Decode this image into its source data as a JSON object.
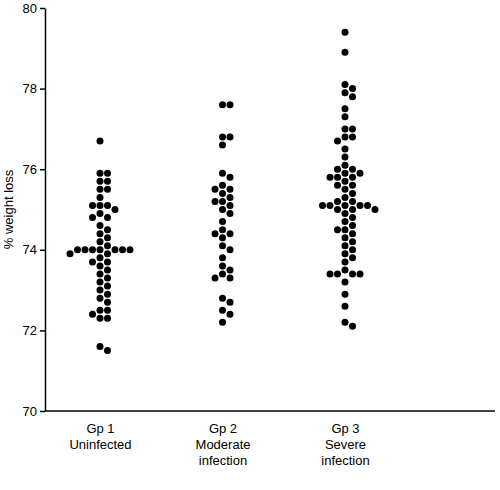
{
  "chart_data": {
    "type": "dot",
    "y_label": "% weight loss",
    "categories": [
      "Gp 1\nUninfected",
      "Gp 2\nModerate\ninfection",
      "Gp 3\nSevere\ninfection"
    ],
    "values": [
      [
        76.7,
        75.9,
        75.9,
        75.7,
        75.7,
        75.5,
        75.5,
        75.3,
        75.1,
        75.1,
        75.1,
        75.0,
        74.9,
        74.8,
        74.8,
        74.6,
        74.5,
        74.4,
        74.3,
        74.2,
        74.1,
        74.0,
        74.0,
        74.0,
        74.0,
        74.0,
        74.0,
        74.0,
        73.9,
        73.9,
        73.8,
        73.7,
        73.7,
        73.6,
        73.5,
        73.4,
        73.3,
        73.2,
        73.1,
        73.0,
        72.9,
        72.8,
        72.7,
        72.5,
        72.5,
        72.4,
        72.3,
        72.3,
        71.6,
        71.5
      ],
      [
        77.6,
        77.6,
        76.8,
        76.8,
        76.6,
        75.9,
        75.8,
        75.6,
        75.5,
        75.5,
        75.4,
        75.3,
        75.2,
        75.2,
        75.1,
        75.0,
        74.9,
        74.7,
        74.5,
        74.4,
        74.4,
        74.3,
        74.1,
        74.0,
        73.8,
        73.6,
        73.5,
        73.4,
        73.3,
        73.3,
        72.8,
        72.7,
        72.5,
        72.4,
        72.2
      ],
      [
        79.4,
        78.9,
        78.1,
        78.0,
        77.9,
        77.8,
        77.5,
        77.3,
        77.0,
        77.0,
        76.8,
        76.8,
        76.7,
        76.5,
        76.3,
        76.1,
        76.0,
        76.0,
        75.9,
        75.9,
        75.8,
        75.8,
        75.8,
        75.7,
        75.6,
        75.6,
        75.5,
        75.4,
        75.3,
        75.2,
        75.2,
        75.1,
        75.1,
        75.1,
        75.1,
        75.1,
        75.0,
        75.0,
        75.0,
        74.9,
        74.8,
        74.7,
        74.6,
        74.5,
        74.5,
        74.4,
        74.3,
        74.2,
        74.1,
        74.0,
        73.9,
        73.8,
        73.7,
        73.5,
        73.4,
        73.4,
        73.4,
        73.4,
        73.2,
        72.9,
        72.6,
        72.2,
        72.1
      ]
    ],
    "color": "#000000",
    "ylim": [
      70,
      80
    ],
    "yticks": [
      70,
      72,
      74,
      76,
      78,
      80
    ]
  }
}
